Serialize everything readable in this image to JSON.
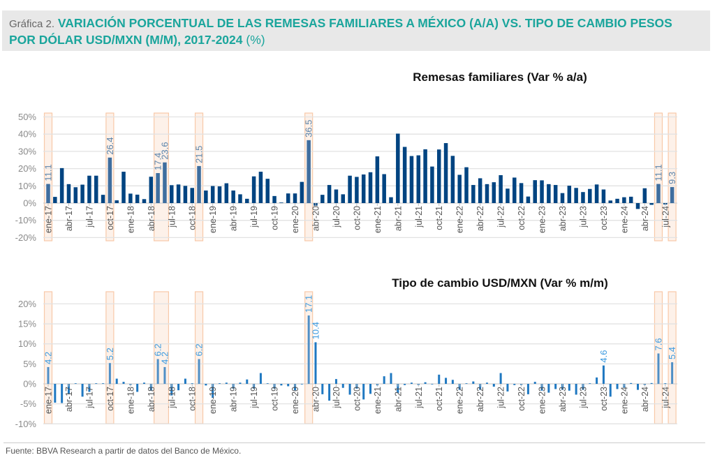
{
  "header": {
    "prefix": "Gráfica 2.",
    "title": "VARIACIÓN PORCENTUAL DE LAS REMESAS FAMILIARES A MÉXICO (A/A) VS. TIPO DE CAMBIO PESOS POR DÓLAR USD/MXN (M/M), 2017-2024",
    "suffix": "(%)"
  },
  "footer": {
    "source": "Fuente: BBVA Research a partir de datos del Banco de México."
  },
  "colors": {
    "title": "#1aa59c",
    "remesas_bar": "#004481",
    "remesas_highlight": "#3f6e9f",
    "fx_bar": "#1f78c1",
    "fx_highlight": "#4f8fc6",
    "highlight_box": "#f8c9a8"
  },
  "chart_data": [
    {
      "type": "bar",
      "title": "Remesas familiares (Var % a/a)",
      "ylim": [
        -20,
        50
      ],
      "yticks": [
        "-20%",
        "-10%",
        "0%",
        "10%",
        "20%",
        "30%",
        "40%",
        "50%"
      ],
      "grid": true,
      "tick_labels": [
        "ene-17",
        "abr-17",
        "jul-17",
        "oct-17",
        "ene-18",
        "abr-18",
        "jul-18",
        "oct-18",
        "ene-19",
        "abr-19",
        "jul-19",
        "oct-19",
        "ene-20",
        "abr-20",
        "jul-20",
        "oct-20",
        "ene-21",
        "abr-21",
        "jul-21",
        "oct-21",
        "ene-22",
        "abr-22",
        "jul-22",
        "oct-22",
        "ene-23",
        "abr-23",
        "jul-23",
        "oct-23",
        "ene-24",
        "abr-24",
        "jul-24"
      ],
      "start_month": "ene-17",
      "values": [
        11.1,
        3.6,
        20.3,
        11,
        9.2,
        10.7,
        15.9,
        15.9,
        4.8,
        26.4,
        1.6,
        18.2,
        5.5,
        4.9,
        2.3,
        15.3,
        17.4,
        23.6,
        10.4,
        10.8,
        10,
        8.8,
        21.5,
        7.3,
        9.9,
        9.7,
        11.5,
        7.3,
        5.1,
        2.5,
        15.5,
        18.2,
        14.1,
        4.1,
        0.3,
        5.6,
        5.6,
        12.3,
        36.5,
        -1.5,
        4.8,
        10.5,
        7.9,
        5.1,
        15.9,
        15.2,
        16.6,
        17.9,
        27.1,
        16.8,
        3.4,
        40.3,
        32.6,
        27.3,
        27.7,
        31.2,
        21.2,
        31.1,
        34.8,
        27.4,
        16.4,
        20.8,
        10.5,
        14.4,
        11,
        12.1,
        16.2,
        8.4,
        14.8,
        11.6,
        3.8,
        13.3,
        13.2,
        11,
        10.5,
        5.8,
        10.1,
        8.8,
        6.4,
        8.2,
        10.8,
        7.9,
        1.5,
        2.5,
        3.4,
        3.7,
        -3.4,
        8.6,
        -1,
        11.1,
        -0.8,
        9.3
      ],
      "highlighted": [
        1,
        10,
        17,
        18,
        23,
        39,
        90,
        92
      ],
      "data_labels": [
        {
          "i": 1,
          "text": "11.1"
        },
        {
          "i": 10,
          "text": "26.4"
        },
        {
          "i": 17,
          "text": "17.4"
        },
        {
          "i": 18,
          "text": "23.6"
        },
        {
          "i": 23,
          "text": "21.5"
        },
        {
          "i": 39,
          "text": "36.5"
        },
        {
          "i": 90,
          "text": "11.1"
        },
        {
          "i": 92,
          "text": "9.3"
        }
      ]
    },
    {
      "type": "bar",
      "title": "Tipo de cambio USD/MXN (Var % m/m)",
      "ylim": [
        -10,
        20
      ],
      "yticks": [
        "-10%",
        "-5%",
        "0%",
        "5%",
        "10%",
        "15%",
        "20%"
      ],
      "grid": true,
      "values": [
        4.2,
        -4.7,
        -4.8,
        -2.6,
        0.1,
        -3.2,
        -2,
        0,
        0,
        5.2,
        1.3,
        0.5,
        -0.3,
        -2,
        0.3,
        -1.7,
        6.2,
        4.2,
        -2.9,
        -1.6,
        1.3,
        0,
        6.2,
        -0.4,
        -3.5,
        0,
        0.3,
        -1.2,
        0.3,
        1.1,
        -1.2,
        2.7,
        0.1,
        -1.2,
        -0.4,
        -0.6,
        -1.6,
        -0.1,
        17.1,
        10.4,
        -2.6,
        -4.2,
        1.2,
        -1,
        -2.7,
        -1.2,
        -3.9,
        -2.5,
        -0.4,
        1.9,
        2.7,
        -2.3,
        -0.3,
        0.3,
        -0.3,
        0.4,
        -0.1,
        2.3,
        1.5,
        1,
        -1.5,
        0.1,
        0.6,
        -1.5,
        0.3,
        -0.7,
        2.7,
        -1.9,
        -0.3,
        -0.3,
        -2.6,
        0.5,
        -1.7,
        -2.2,
        -1.3,
        -1.5,
        -1.7,
        -2.7,
        -1.5,
        0,
        1.6,
        4.6,
        -3.2,
        -1.3,
        -0.9,
        0.2,
        -1.5,
        -0.3,
        0.2,
        7.6,
        0,
        5.4
      ],
      "highlighted": [
        1,
        10,
        17,
        18,
        23,
        39,
        90,
        92
      ],
      "data_labels": [
        {
          "i": 1,
          "text": "4.2"
        },
        {
          "i": 10,
          "text": "5.2"
        },
        {
          "i": 17,
          "text": "6.2"
        },
        {
          "i": 18,
          "text": "4.2"
        },
        {
          "i": 23,
          "text": "6.2"
        },
        {
          "i": 39,
          "text": "17.1"
        },
        {
          "i": 40,
          "text": "10.4"
        },
        {
          "i": 82,
          "text": "4.6"
        },
        {
          "i": 90,
          "text": "7.6"
        },
        {
          "i": 92,
          "text": "5.4"
        }
      ]
    }
  ]
}
